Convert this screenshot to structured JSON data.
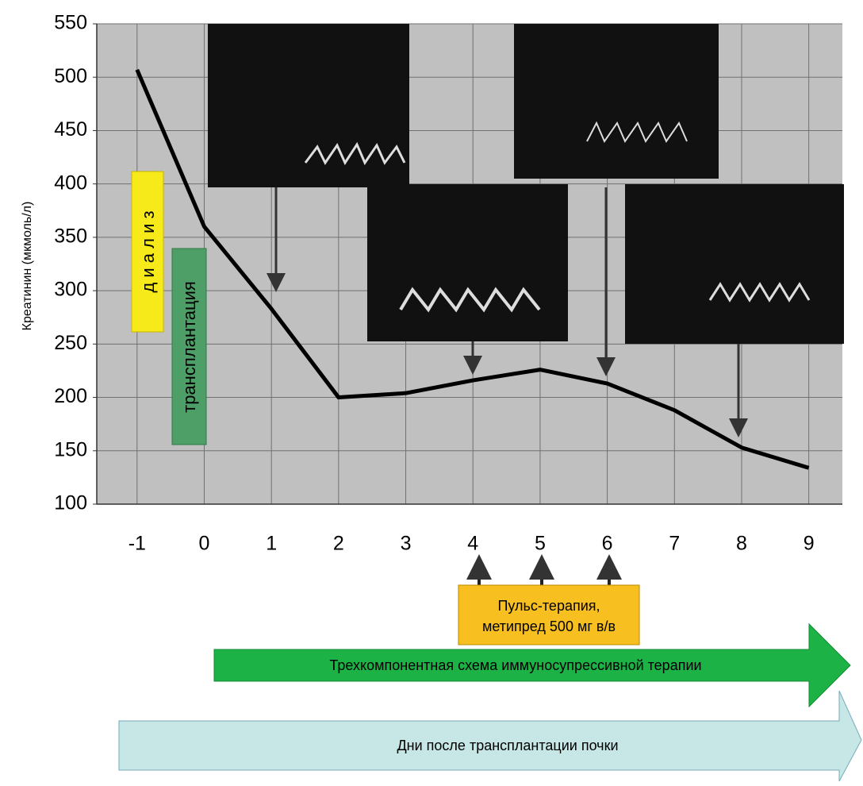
{
  "chart_data": {
    "type": "line",
    "y_label": "Креатинин (мкмоль/л)",
    "x": [
      -1,
      0,
      1,
      2,
      3,
      4,
      5,
      6,
      7,
      8,
      9
    ],
    "values": [
      507,
      360,
      283,
      200,
      204,
      216,
      226,
      213,
      188,
      153,
      134
    ],
    "color": "#000000",
    "xlim": [
      -1.6,
      9.5
    ],
    "xticks": [
      -1,
      0,
      1,
      2,
      3,
      4,
      5,
      6,
      7,
      8,
      9
    ],
    "ylim": [
      100,
      550
    ],
    "yticks": [
      100,
      150,
      200,
      250,
      300,
      350,
      400,
      450,
      500,
      550
    ],
    "grid": true,
    "annotations": {
      "dialysis": "д и а л и з",
      "transplantation": "трансплантация",
      "pulse_therapy": [
        "Пульс-терапия,",
        "метипред 500 мг в/в"
      ],
      "immunosuppression": "Трехкомпонентная схема иммуносупрессивной терапии",
      "days": "Дни после трансплантации почки"
    }
  }
}
